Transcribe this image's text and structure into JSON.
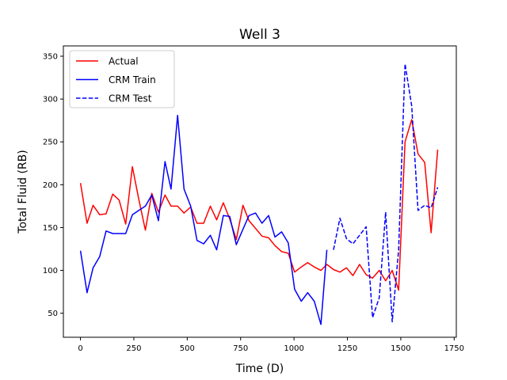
{
  "chart_data": {
    "type": "line",
    "title": "Well 3",
    "xlabel": "Time (D)",
    "ylabel": "Total Fluid (RB)",
    "xlim": [
      -80,
      1760
    ],
    "ylim": [
      22,
      362
    ],
    "xticks": [
      0,
      250,
      500,
      750,
      1000,
      1250,
      1500,
      1750
    ],
    "yticks": [
      50,
      100,
      150,
      200,
      250,
      300,
      350
    ],
    "grid": false,
    "legend_position": "top-left",
    "series": [
      {
        "name": "Actual",
        "color": "#ff0000",
        "style": "solid",
        "x": [
          0,
          31,
          59,
          90,
          120,
          151,
          181,
          212,
          243,
          273,
          304,
          334,
          365,
          396,
          424,
          455,
          485,
          516,
          546,
          577,
          608,
          638,
          669,
          699,
          730,
          761,
          789,
          820,
          850,
          881,
          911,
          942,
          973,
          1003,
          1034,
          1064,
          1095,
          1126,
          1154,
          1185,
          1215,
          1246,
          1276,
          1307,
          1338,
          1368,
          1399,
          1429,
          1460,
          1490,
          1520,
          1551,
          1581,
          1612,
          1642,
          1673
        ],
        "values": [
          202,
          155,
          176,
          165,
          166,
          189,
          182,
          154,
          221,
          183,
          147,
          190,
          168,
          188,
          175,
          175,
          167,
          174,
          155,
          155,
          175,
          159,
          179,
          160,
          136,
          176,
          158,
          149,
          140,
          138,
          129,
          122,
          120,
          98,
          104,
          109,
          104,
          100,
          107,
          101,
          98,
          103,
          94,
          107,
          95,
          91,
          100,
          88,
          100,
          77,
          250,
          276,
          236,
          226,
          144,
          241
        ]
      },
      {
        "name": "CRM Train",
        "color": "#0000ff",
        "style": "solid",
        "x": [
          0,
          31,
          59,
          90,
          120,
          151,
          181,
          212,
          243,
          273,
          304,
          334,
          365,
          396,
          424,
          455,
          485,
          516,
          546,
          577,
          608,
          638,
          669,
          699,
          730,
          761,
          789,
          820,
          850,
          881,
          911,
          942,
          973,
          1003,
          1034,
          1064,
          1095,
          1126,
          1154
        ],
        "values": [
          123,
          74,
          103,
          116,
          146,
          143,
          143,
          143,
          165,
          170,
          175,
          188,
          158,
          227,
          195,
          281,
          195,
          175,
          135,
          131,
          141,
          124,
          164,
          163,
          130,
          148,
          164,
          167,
          155,
          164,
          139,
          145,
          132,
          78,
          64,
          74,
          64,
          37,
          124
        ]
      },
      {
        "name": "CRM Test",
        "color": "#0000ff",
        "style": "dashed",
        "x": [
          1185,
          1215,
          1246,
          1276,
          1307,
          1338,
          1368,
          1399,
          1429,
          1460,
          1490,
          1520,
          1551,
          1581,
          1612,
          1642,
          1673
        ],
        "values": [
          124,
          161,
          137,
          131,
          141,
          151,
          45,
          68,
          168,
          40,
          124,
          341,
          292,
          170,
          176,
          173,
          197
        ]
      }
    ]
  }
}
